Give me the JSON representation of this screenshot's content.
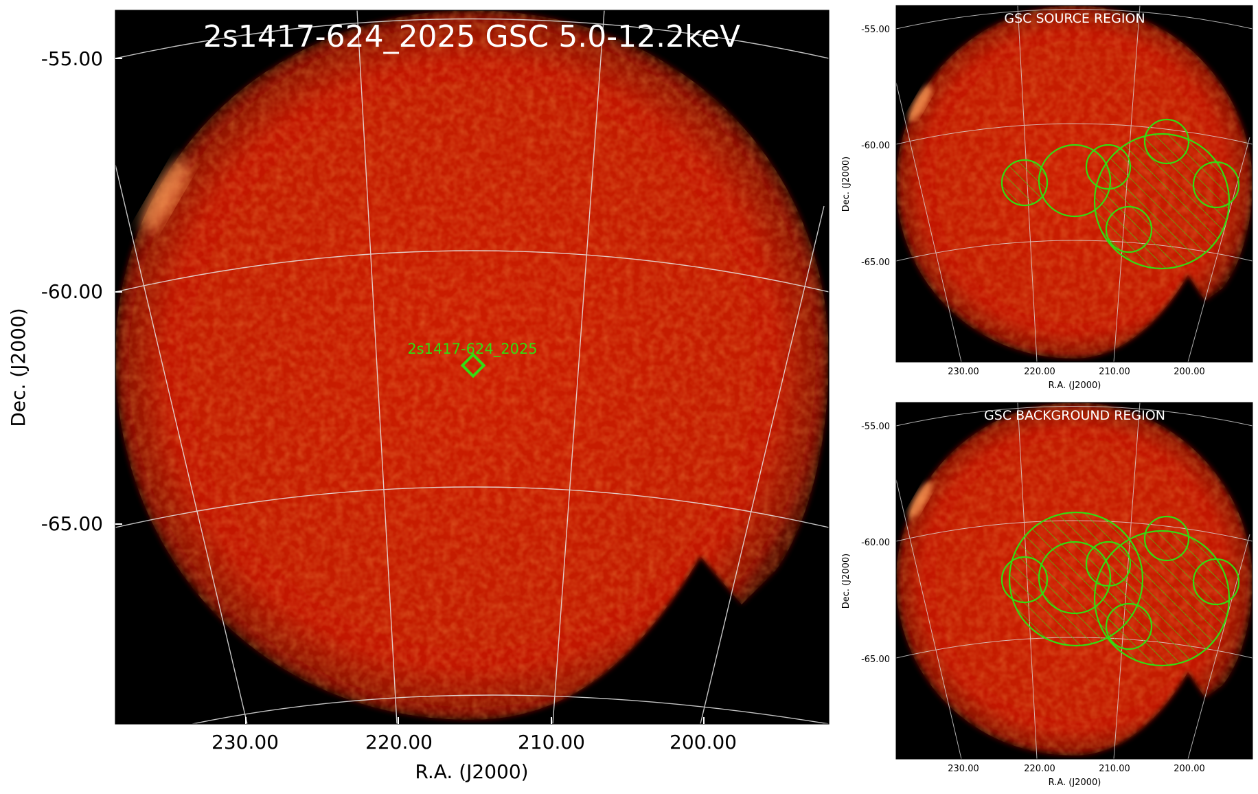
{
  "main": {
    "title": "2s1417-624_2025 GSC 5.0-12.2keV",
    "source_label": "2s1417-624_2025",
    "ylabel": "Dec. (J2000)",
    "xlabel": "R.A. (J2000)",
    "dec_ticks": [
      "-55.00",
      "-60.00",
      "-65.00"
    ],
    "ra_ticks": [
      "230.00",
      "220.00",
      "210.00",
      "200.00"
    ]
  },
  "source_panel": {
    "title": "GSC SOURCE REGION",
    "ylabel": "Dec. (J2000)",
    "xlabel": "R.A. (J2000)",
    "dec_ticks": [
      "-55.00",
      "-60.00",
      "-65.00"
    ],
    "ra_ticks": [
      "230.00",
      "220.00",
      "210.00",
      "200.00"
    ]
  },
  "background_panel": {
    "title": "GSC BACKGROUND REGION",
    "ylabel": "Dec. (J2000)",
    "xlabel": "R.A. (J2000)",
    "dec_ticks": [
      "-55.00",
      "-60.00",
      "-65.00"
    ],
    "ra_ticks": [
      "230.00",
      "220.00",
      "210.00",
      "200.00"
    ]
  },
  "colors": {
    "sky": "#c41a00",
    "sky_edge": "#7a0c00",
    "region": "#33dd11",
    "frame_bg": "#000000",
    "title": "#ffffff"
  }
}
